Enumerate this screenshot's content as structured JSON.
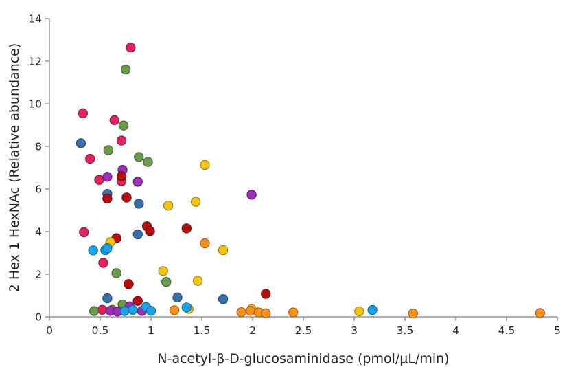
{
  "chart_data": {
    "type": "scatter",
    "xlabel": "N-acetyl-β-D-glucosaminidase (pmol/µL/min)",
    "ylabel": "2 Hex 1 HexNAc (Relative abundance)",
    "xlim": [
      0,
      5
    ],
    "ylim": [
      0,
      14
    ],
    "x_ticks": [
      0,
      0.5,
      1,
      1.5,
      2,
      2.5,
      3,
      3.5,
      4,
      4.5,
      5
    ],
    "x_tick_labels": [
      "0",
      "0.5",
      "1",
      "1.5",
      "2",
      "2.5",
      "3",
      "3.5",
      "4",
      "4.5",
      "5"
    ],
    "y_ticks": [
      0,
      2,
      4,
      6,
      8,
      10,
      12,
      14
    ],
    "y_tick_labels": [
      "0",
      "2",
      "4",
      "6",
      "8",
      "10",
      "12",
      "14"
    ],
    "grid": false,
    "legend": "none",
    "series": [
      {
        "color": "#e0245e",
        "stroke": "#8a1238",
        "points": [
          {
            "x": 0.33,
            "y": 9.55
          },
          {
            "x": 0.4,
            "y": 7.42
          },
          {
            "x": 0.49,
            "y": 6.43
          },
          {
            "x": 0.34,
            "y": 3.97
          },
          {
            "x": 0.53,
            "y": 2.53
          },
          {
            "x": 0.64,
            "y": 9.23
          },
          {
            "x": 0.71,
            "y": 8.27
          },
          {
            "x": 0.71,
            "y": 6.37
          },
          {
            "x": 0.8,
            "y": 12.64
          },
          {
            "x": 0.52,
            "y": 0.33
          }
        ]
      },
      {
        "color": "#6b9a4c",
        "stroke": "#3f5f2c",
        "points": [
          {
            "x": 0.58,
            "y": 7.82
          },
          {
            "x": 0.75,
            "y": 11.61
          },
          {
            "x": 0.73,
            "y": 8.98
          },
          {
            "x": 0.88,
            "y": 7.5
          },
          {
            "x": 0.97,
            "y": 7.27
          },
          {
            "x": 0.66,
            "y": 2.05
          },
          {
            "x": 1.15,
            "y": 1.64
          },
          {
            "x": 0.44,
            "y": 0.27
          },
          {
            "x": 0.62,
            "y": 0.33
          },
          {
            "x": 0.72,
            "y": 0.58
          }
        ]
      },
      {
        "color": "#3b6fa8",
        "stroke": "#1f4370",
        "points": [
          {
            "x": 0.31,
            "y": 8.15
          },
          {
            "x": 0.57,
            "y": 5.77
          },
          {
            "x": 0.88,
            "y": 5.31
          },
          {
            "x": 0.87,
            "y": 3.87
          },
          {
            "x": 0.57,
            "y": 0.87
          },
          {
            "x": 1.26,
            "y": 0.91
          },
          {
            "x": 1.71,
            "y": 0.83
          }
        ]
      },
      {
        "color": "#9b2fb5",
        "stroke": "#5e1a6f",
        "points": [
          {
            "x": 0.57,
            "y": 6.57
          },
          {
            "x": 0.72,
            "y": 6.9
          },
          {
            "x": 0.87,
            "y": 6.34
          },
          {
            "x": 1.99,
            "y": 5.73
          },
          {
            "x": 0.6,
            "y": 0.28
          },
          {
            "x": 0.67,
            "y": 0.25
          },
          {
            "x": 0.79,
            "y": 0.49
          },
          {
            "x": 0.91,
            "y": 0.28
          }
        ]
      },
      {
        "color": "#b30f0f",
        "stroke": "#6a0707",
        "points": [
          {
            "x": 0.57,
            "y": 5.55
          },
          {
            "x": 0.71,
            "y": 6.6
          },
          {
            "x": 0.76,
            "y": 5.6
          },
          {
            "x": 0.66,
            "y": 3.69
          },
          {
            "x": 0.96,
            "y": 4.25
          },
          {
            "x": 0.99,
            "y": 4.02
          },
          {
            "x": 1.35,
            "y": 4.15
          },
          {
            "x": 0.78,
            "y": 1.54
          },
          {
            "x": 0.87,
            "y": 0.75
          },
          {
            "x": 2.13,
            "y": 1.08
          }
        ]
      },
      {
        "color": "#f2c318",
        "stroke": "#9a7a0c",
        "points": [
          {
            "x": 0.6,
            "y": 3.5
          },
          {
            "x": 1.17,
            "y": 5.22
          },
          {
            "x": 1.44,
            "y": 5.4
          },
          {
            "x": 1.53,
            "y": 7.13
          },
          {
            "x": 1.71,
            "y": 3.13
          },
          {
            "x": 1.12,
            "y": 2.15
          },
          {
            "x": 1.46,
            "y": 1.69
          },
          {
            "x": 1.37,
            "y": 0.37
          },
          {
            "x": 1.99,
            "y": 0.36
          },
          {
            "x": 3.05,
            "y": 0.26
          }
        ]
      },
      {
        "color": "#1aa3e8",
        "stroke": "#0f6796",
        "points": [
          {
            "x": 0.43,
            "y": 3.12
          },
          {
            "x": 0.55,
            "y": 3.13
          },
          {
            "x": 0.57,
            "y": 3.22
          },
          {
            "x": 0.74,
            "y": 0.27
          },
          {
            "x": 0.82,
            "y": 0.33
          },
          {
            "x": 0.95,
            "y": 0.46
          },
          {
            "x": 1.0,
            "y": 0.28
          },
          {
            "x": 1.35,
            "y": 0.44
          },
          {
            "x": 3.18,
            "y": 0.32
          }
        ]
      },
      {
        "color": "#f7901e",
        "stroke": "#a55a0b",
        "points": [
          {
            "x": 1.23,
            "y": 0.31
          },
          {
            "x": 1.53,
            "y": 3.45
          },
          {
            "x": 1.89,
            "y": 0.22
          },
          {
            "x": 1.98,
            "y": 0.28
          },
          {
            "x": 2.06,
            "y": 0.21
          },
          {
            "x": 2.13,
            "y": 0.17
          },
          {
            "x": 2.4,
            "y": 0.21
          },
          {
            "x": 3.58,
            "y": 0.16
          },
          {
            "x": 4.83,
            "y": 0.18
          }
        ]
      }
    ]
  }
}
